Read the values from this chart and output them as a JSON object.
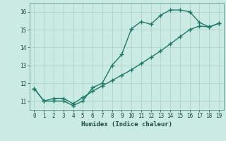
{
  "xlabel": "Humidex (Indice chaleur)",
  "bg_color": "#cceae4",
  "grid_color": "#aad4cc",
  "line_color": "#1a7a6a",
  "line1_y": [
    11.7,
    11.0,
    11.0,
    11.0,
    10.75,
    11.0,
    11.75,
    12.0,
    13.0,
    13.6,
    15.05,
    15.45,
    15.3,
    15.8,
    16.1,
    16.1,
    16.0,
    15.4,
    15.15,
    15.35
  ],
  "line2_y": [
    11.7,
    11.0,
    11.15,
    11.15,
    10.85,
    11.2,
    11.55,
    11.85,
    12.15,
    12.45,
    12.75,
    13.1,
    13.45,
    13.8,
    14.2,
    14.6,
    15.0,
    15.2,
    15.15,
    15.35
  ],
  "xlim": [
    -0.5,
    19.5
  ],
  "ylim": [
    10.5,
    16.5
  ],
  "yticks": [
    11,
    12,
    13,
    14,
    15,
    16
  ],
  "xticks": [
    0,
    1,
    2,
    3,
    4,
    5,
    6,
    7,
    8,
    9,
    10,
    11,
    12,
    13,
    14,
    15,
    16,
    17,
    18,
    19
  ]
}
